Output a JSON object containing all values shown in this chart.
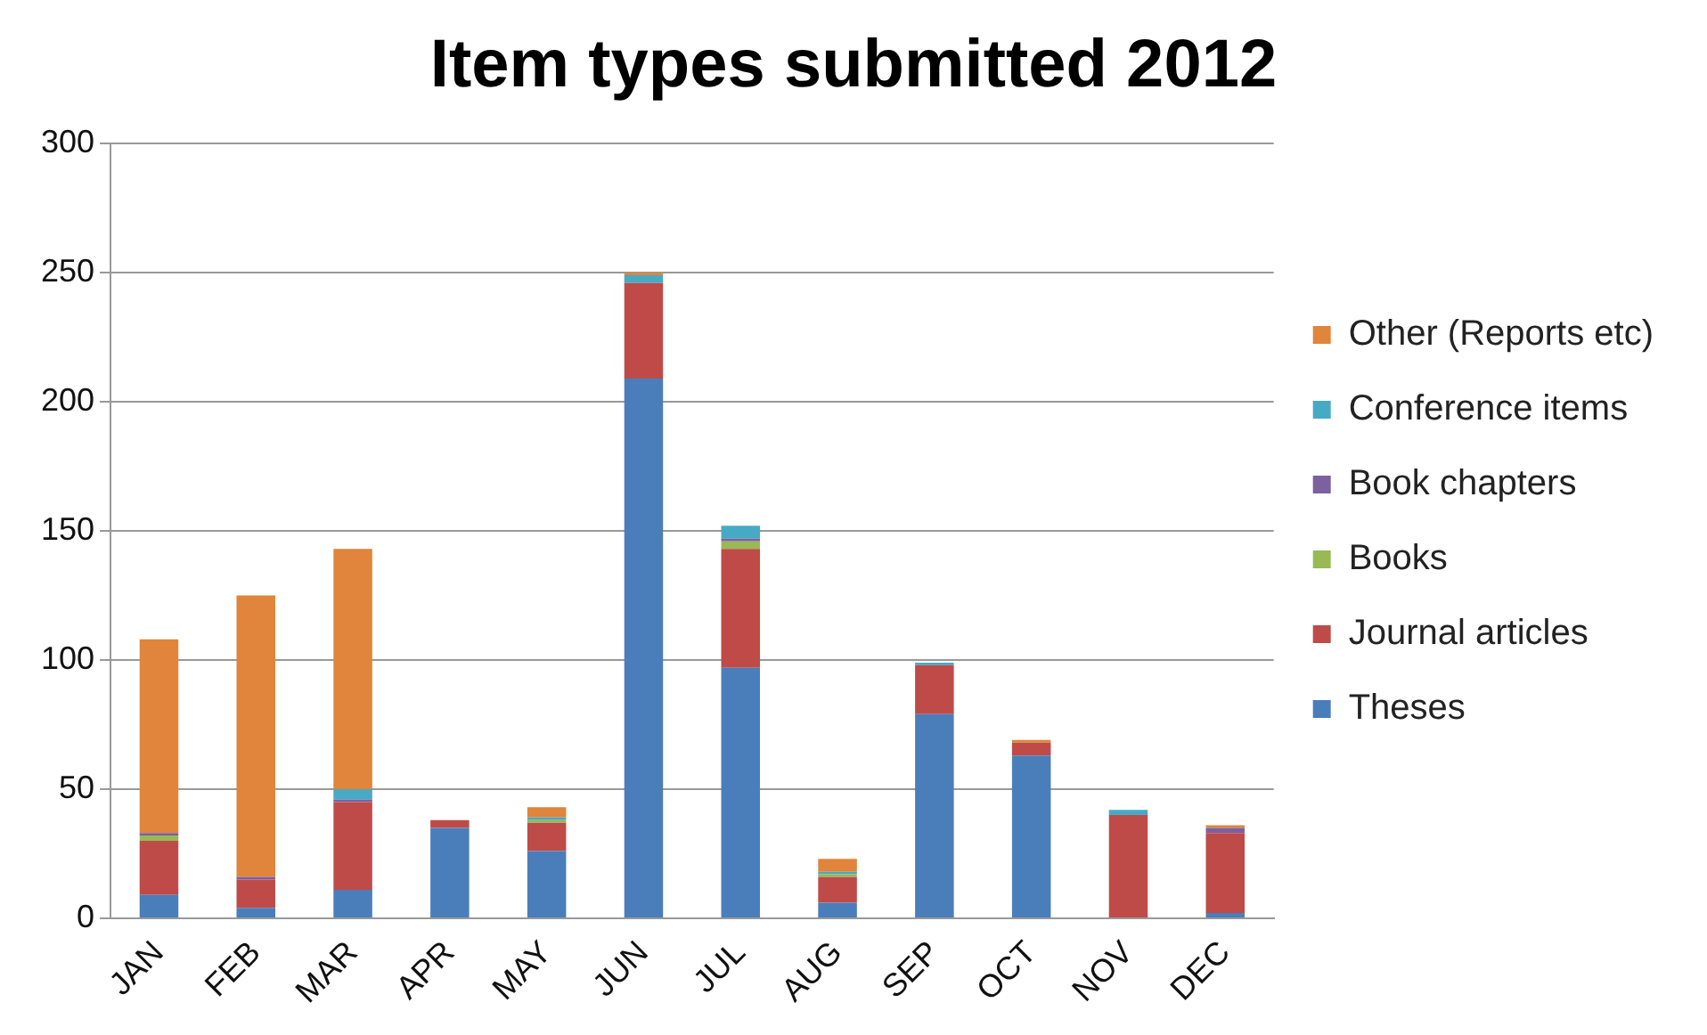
{
  "chart_data": {
    "type": "bar",
    "title": "Item types submitted 2012",
    "stacked": true,
    "categories": [
      "JAN",
      "FEB",
      "MAR",
      "APR",
      "MAY",
      "JUN",
      "JUL",
      "AUG",
      "SEP",
      "OCT",
      "NOV",
      "DEC"
    ],
    "series": [
      {
        "name": "Theses",
        "color": "#4a7ebb",
        "values": [
          9,
          4,
          11,
          35,
          26,
          209,
          97,
          6,
          79,
          63,
          0,
          2
        ]
      },
      {
        "name": "Journal articles",
        "color": "#be4b48",
        "values": [
          21,
          11,
          34,
          3,
          11,
          37,
          46,
          10,
          19,
          5,
          40,
          31
        ]
      },
      {
        "name": "Books",
        "color": "#98b954",
        "values": [
          2,
          0,
          0,
          0,
          1,
          0,
          3,
          1,
          0,
          0,
          0,
          0
        ]
      },
      {
        "name": "Book chapters",
        "color": "#7d60a0",
        "values": [
          1,
          1,
          1,
          0,
          0,
          0,
          1,
          0,
          0,
          0,
          0,
          2
        ]
      },
      {
        "name": "Conference items",
        "color": "#46aac5",
        "values": [
          0,
          0,
          4,
          0,
          1,
          3,
          5,
          1,
          1,
          0,
          2,
          0
        ]
      },
      {
        "name": "Other (Reports etc)",
        "color": "#e0853b",
        "values": [
          75,
          109,
          93,
          0,
          4,
          1,
          0,
          5,
          0,
          1,
          0,
          1
        ]
      }
    ],
    "ylim": [
      0,
      300
    ],
    "yticks": [
      0,
      50,
      100,
      150,
      200,
      250,
      300
    ],
    "grid": "y",
    "legend": "right"
  }
}
